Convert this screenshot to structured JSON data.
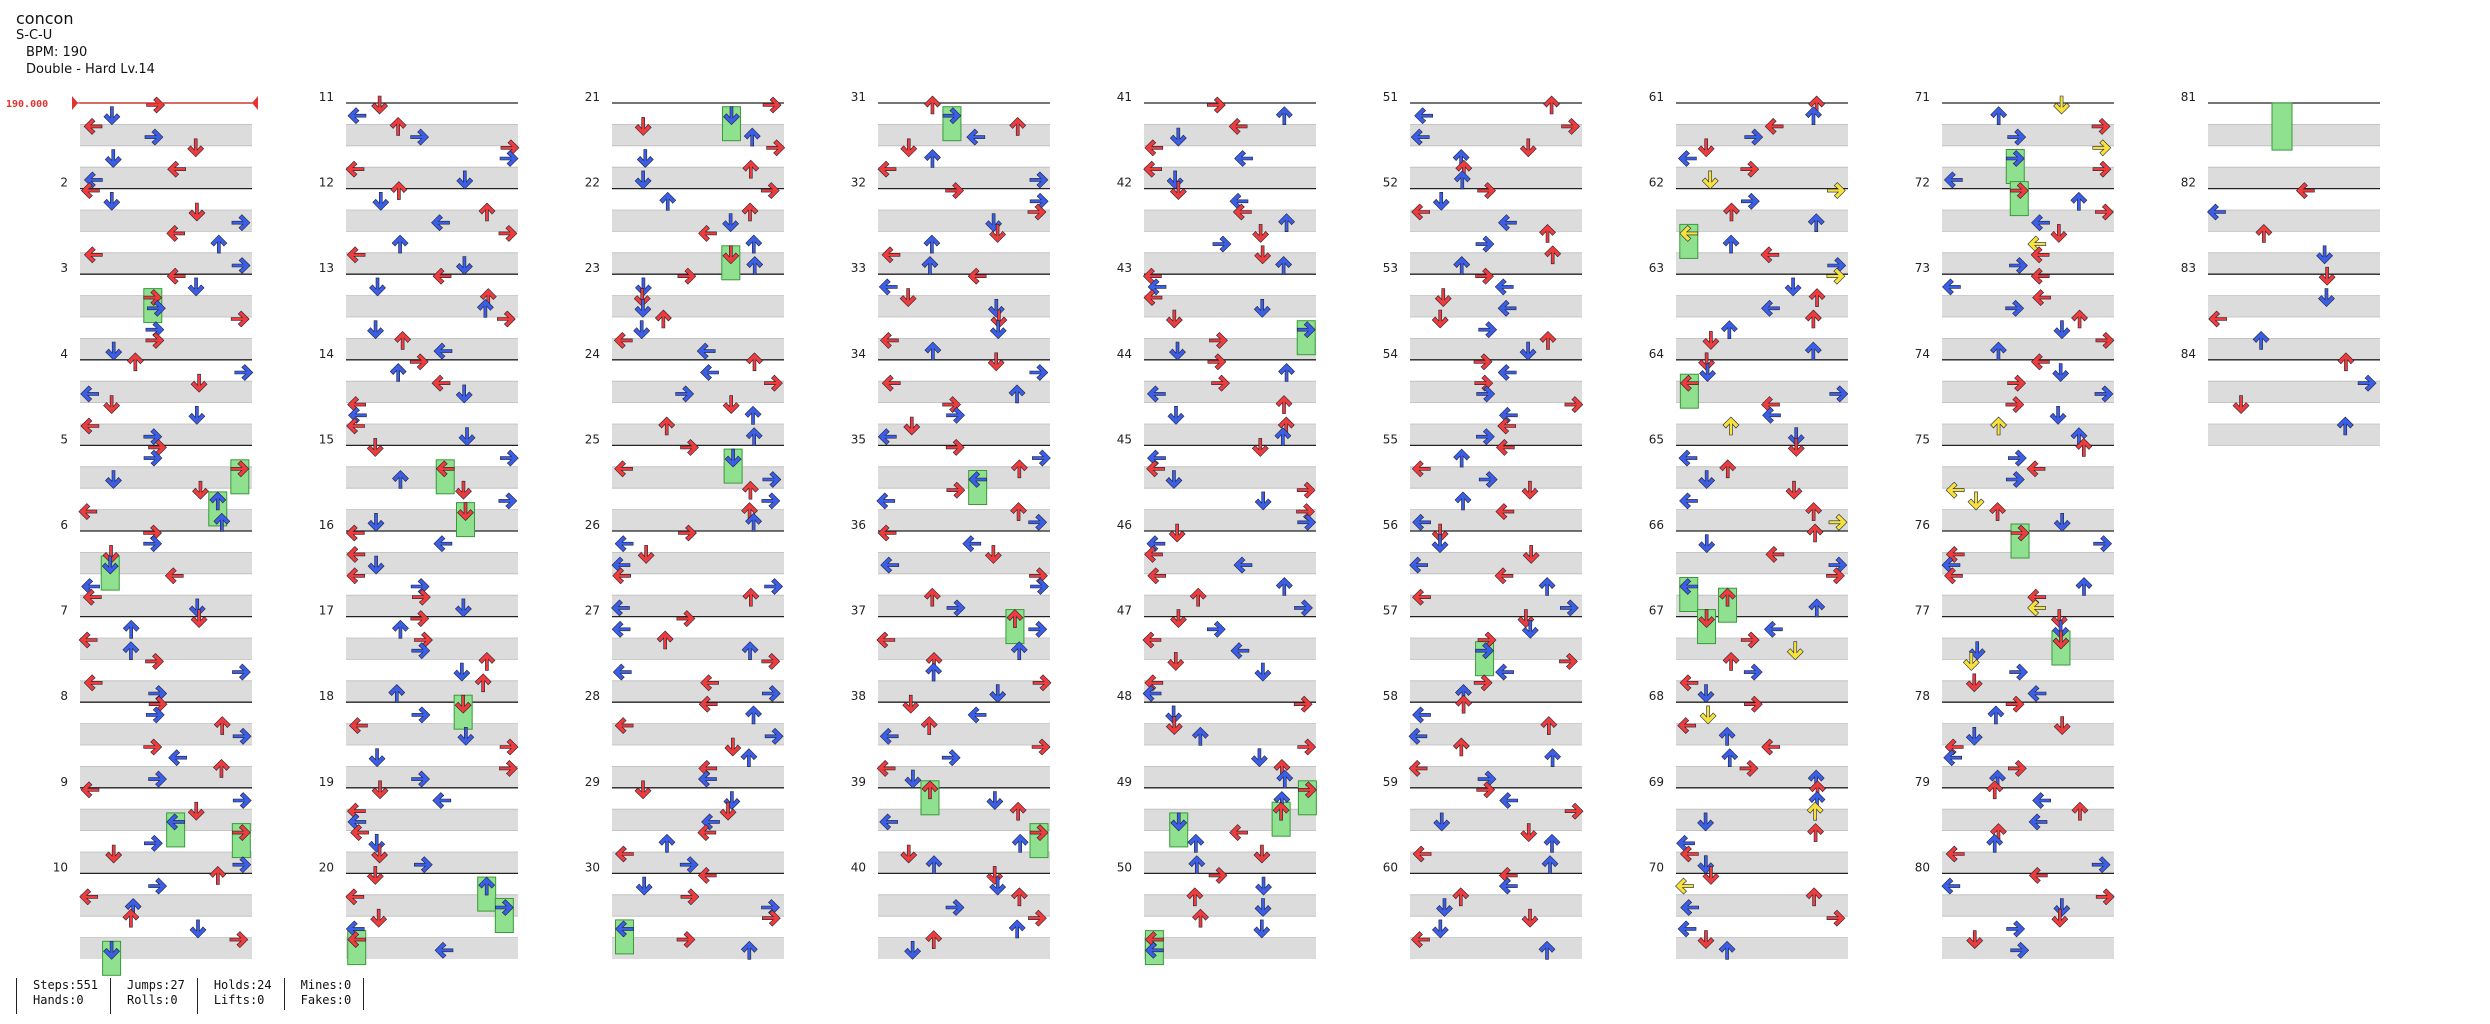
{
  "song": {
    "title": "concon",
    "artist": "S-C-U",
    "bpm_label": "BPM: 190",
    "difficulty_label": "Double - Hard Lv.14"
  },
  "bpm_marker": {
    "label": "190.000",
    "color": "#e23333"
  },
  "colors": {
    "red_arrow": "#ee3b3b",
    "blue_arrow": "#3a5ee8",
    "yellow_arrow": "#f6e23a",
    "hold": "#8fe08f",
    "band": "#dcdcdc"
  },
  "measures": {
    "first": 1,
    "last": 84,
    "per_column": 10,
    "labeled": [
      2,
      3,
      4,
      5,
      6,
      7,
      8,
      9,
      10,
      11,
      12,
      13,
      14,
      15,
      16,
      17,
      18,
      19,
      20,
      21,
      22,
      23,
      24,
      25,
      26,
      27,
      28,
      29,
      30,
      31,
      32,
      33,
      34,
      35,
      36,
      37,
      38,
      39,
      40,
      41,
      42,
      43,
      44,
      45,
      46,
      47,
      48,
      49,
      50,
      51,
      52,
      53,
      54,
      55,
      56,
      57,
      58,
      59,
      60,
      61,
      62,
      63,
      64,
      65,
      66,
      67,
      68,
      69,
      70,
      71,
      72,
      73,
      74,
      75,
      76,
      77,
      78,
      79,
      80,
      81,
      82,
      83,
      84
    ]
  },
  "stats": [
    {
      "top": "Steps:551",
      "bottom": "Hands:0"
    },
    {
      "top": "Jumps:27",
      "bottom": "Rolls:0"
    },
    {
      "top": "Holds:24",
      "bottom": "Lifts:0"
    },
    {
      "top": "Mines:0",
      "bottom": "Fakes:0"
    }
  ]
}
